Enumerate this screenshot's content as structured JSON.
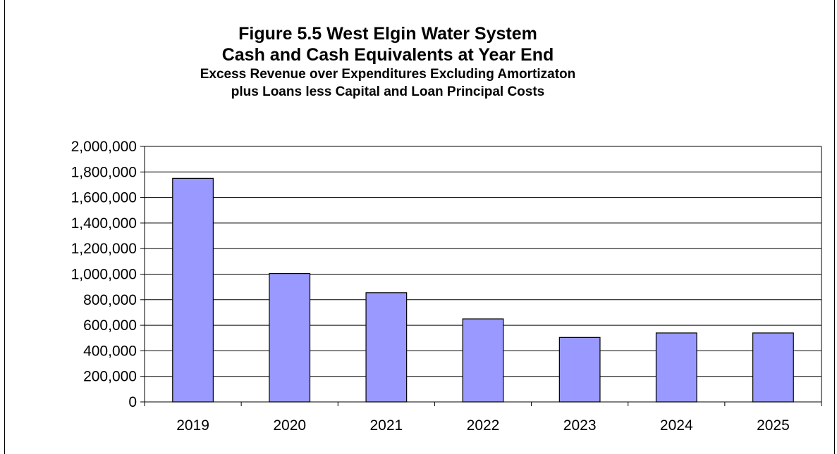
{
  "chart_data": {
    "type": "bar",
    "title": "Figure 5.5 West Elgin Water System",
    "title_line2": "Cash and Cash Equivalents at Year End",
    "subtitle": "Excess Revenue over Expenditures Excluding Amortizaton",
    "subtitle_line2": "plus Loans less Capital and Loan Principal Costs",
    "categories": [
      "2019",
      "2020",
      "2021",
      "2022",
      "2023",
      "2024",
      "2025"
    ],
    "values": [
      1750000,
      1005000,
      855000,
      650000,
      505000,
      540000,
      540000
    ],
    "ylim": [
      0,
      2000000
    ],
    "yticks": [
      0,
      200000,
      400000,
      600000,
      800000,
      1000000,
      1200000,
      1400000,
      1600000,
      1800000,
      2000000
    ],
    "ytick_labels": [
      "0",
      "200,000",
      "400,000",
      "600,000",
      "800,000",
      "1,000,000",
      "1,200,000",
      "1,400,000",
      "1,600,000",
      "1,800,000",
      "2,000,000"
    ],
    "xlabel": "",
    "ylabel": "",
    "grid": true,
    "legend": false,
    "bar_color": "#9999ff"
  }
}
